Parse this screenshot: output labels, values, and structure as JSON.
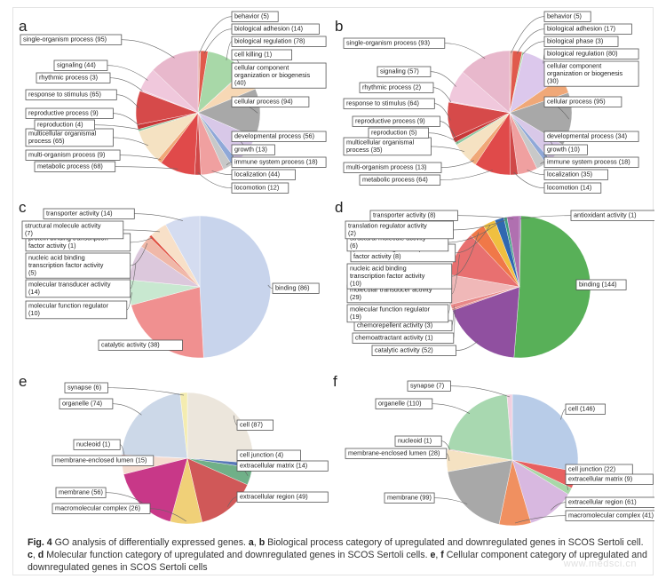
{
  "caption": {
    "fig_label": "Fig. 4",
    "text_parts": [
      {
        "t": " GO analysis of differentially expressed genes. ",
        "b": false
      },
      {
        "t": "a",
        "b": true
      },
      {
        "t": ", ",
        "b": false
      },
      {
        "t": "b",
        "b": true
      },
      {
        "t": " Biological process category of upregulated and downregulated genes in SCOS Sertoli cell. ",
        "b": false
      },
      {
        "t": "c",
        "b": true
      },
      {
        "t": ", ",
        "b": false
      },
      {
        "t": "d",
        "b": true
      },
      {
        "t": " Molecular function category of upregulated and downregulated genes in SCOS Sertoli cells. ",
        "b": false
      },
      {
        "t": "e",
        "b": true
      },
      {
        "t": ", ",
        "b": false
      },
      {
        "t": "f",
        "b": true
      },
      {
        "t": " Cellular component category of upregulated and downregulated genes in SCOS Sertoli cells",
        "b": false
      }
    ]
  },
  "chart_data": [
    {
      "panel": "a",
      "type": "pie",
      "slices": [
        {
          "label": "behavior (5)",
          "value": 5,
          "color": "#e5a7a0"
        },
        {
          "label": "biological adhesion (14)",
          "value": 14,
          "color": "#e05a4c"
        },
        {
          "label": "biological regulation (78)",
          "value": 78,
          "color": "#a8d8a8"
        },
        {
          "label": "cell killing (1)",
          "value": 1,
          "color": "#6a8fc8"
        },
        {
          "label": "cellular component organization or biogenesis (40)",
          "value": 40,
          "color": "#f7d8b5"
        },
        {
          "label": "cellular process (94)",
          "value": 94,
          "color": "#a8a8a8"
        },
        {
          "label": "developmental process (56)",
          "value": 56,
          "color": "#d8c8e8"
        },
        {
          "label": "growth (13)",
          "value": 13,
          "color": "#8fa8d8"
        },
        {
          "label": "immune system process (18)",
          "value": 18,
          "color": "#c8c8c8"
        },
        {
          "label": "localization (44)",
          "value": 44,
          "color": "#f0a0a0"
        },
        {
          "label": "locomotion (12)",
          "value": 12,
          "color": "#d04848"
        },
        {
          "label": "metabolic process (68)",
          "value": 68,
          "color": "#e04a4a"
        },
        {
          "label": "multi-organism process (9)",
          "value": 9,
          "color": "#f0a878"
        },
        {
          "label": "multicellular organismal process (65)",
          "value": 65,
          "color": "#f5e2c2"
        },
        {
          "label": "reproduction (4)",
          "value": 4,
          "color": "#8cc8a0"
        },
        {
          "label": "reproductive process (9)",
          "value": 9,
          "color": "#c83838"
        },
        {
          "label": "response to stimulus (65)",
          "value": 65,
          "color": "#d64a4a"
        },
        {
          "label": "rhythmic process (3)",
          "value": 3,
          "color": "#f0c8d8"
        },
        {
          "label": "signaling (44)",
          "value": 44,
          "color": "#f0c8dc"
        },
        {
          "label": "single-organism process (95)",
          "value": 95,
          "color": "#e8b8cc"
        }
      ]
    },
    {
      "panel": "b",
      "type": "pie",
      "slices": [
        {
          "label": "behavior (5)",
          "value": 5,
          "color": "#e5a7a0"
        },
        {
          "label": "biological adhesion (17)",
          "value": 17,
          "color": "#e05a4c"
        },
        {
          "label": "biological phase (3)",
          "value": 3,
          "color": "#a8d8a8"
        },
        {
          "label": "biological regulation (80)",
          "value": 80,
          "color": "#dcc8ec"
        },
        {
          "label": "cellular component organization or biogenesis (30)",
          "value": 30,
          "color": "#f0a878"
        },
        {
          "label": "cellular process (95)",
          "value": 95,
          "color": "#a8a8a8"
        },
        {
          "label": "developmental process (34)",
          "value": 34,
          "color": "#d8c8e8"
        },
        {
          "label": "growth (10)",
          "value": 10,
          "color": "#8fa8d8"
        },
        {
          "label": "immune system process (18)",
          "value": 18,
          "color": "#c8c8c8"
        },
        {
          "label": "localization (35)",
          "value": 35,
          "color": "#f0a0a0"
        },
        {
          "label": "locomotion (14)",
          "value": 14,
          "color": "#d04848"
        },
        {
          "label": "metabolic process (64)",
          "value": 64,
          "color": "#e04a4a"
        },
        {
          "label": "multi-organism process (13)",
          "value": 13,
          "color": "#f0a878"
        },
        {
          "label": "multicellular organismal process (35)",
          "value": 35,
          "color": "#f5e2c2"
        },
        {
          "label": "reproduction (5)",
          "value": 5,
          "color": "#8cc8a0"
        },
        {
          "label": "reproductive process (9)",
          "value": 9,
          "color": "#c83838"
        },
        {
          "label": "response to stimulus (64)",
          "value": 64,
          "color": "#d64a4a"
        },
        {
          "label": "rhythmic process (2)",
          "value": 2,
          "color": "#f0c8d8"
        },
        {
          "label": "signaling (57)",
          "value": 57,
          "color": "#f0c8dc"
        },
        {
          "label": "single-organism process (93)",
          "value": 93,
          "color": "#e8b8cc"
        }
      ]
    },
    {
      "panel": "c",
      "type": "pie",
      "slices": [
        {
          "label": "binding (86)",
          "value": 86,
          "color": "#c8d4ec"
        },
        {
          "label": "catalytic activity (38)",
          "value": 38,
          "color": "#f09090"
        },
        {
          "label": "molecular function regulator (10)",
          "value": 10,
          "color": "#c8e8d0"
        },
        {
          "label": "molecular transducer activity (14)",
          "value": 14,
          "color": "#dcc8dc"
        },
        {
          "label": "nucleic acid binding transcription factor activity (5)",
          "value": 5,
          "color": "#f0b8a8"
        },
        {
          "label": "protein binding transcription factor activity (1)",
          "value": 1,
          "color": "#e05040"
        },
        {
          "label": "structural molecule activity (7)",
          "value": 7,
          "color": "#f8e0c8"
        },
        {
          "label": "transporter activity (14)",
          "value": 14,
          "color": "#d4dcf0"
        }
      ]
    },
    {
      "panel": "d",
      "type": "pie",
      "slices": [
        {
          "label": "antioxidant activity (1)",
          "value": 1,
          "color": "#8850a0"
        },
        {
          "label": "binding (144)",
          "value": 144,
          "color": "#58b058"
        },
        {
          "label": "catalytic activity (52)",
          "value": 52,
          "color": "#9050a0"
        },
        {
          "label": "chemoattractant activity (1)",
          "value": 1,
          "color": "#e08080"
        },
        {
          "label": "chemorepellent activity (3)",
          "value": 3,
          "color": "#e88888"
        },
        {
          "label": "molecular function regulator (19)",
          "value": 19,
          "color": "#f0b8b8"
        },
        {
          "label": "molecular transducer activity (29)",
          "value": 29,
          "color": "#e87070"
        },
        {
          "label": "nucleic acid binding transcription factor activity (10)",
          "value": 10,
          "color": "#f07848"
        },
        {
          "label": "protein binding transcription factor activity (8)",
          "value": 8,
          "color": "#f0c040"
        },
        {
          "label": "structural molecule activity (6)",
          "value": 6,
          "color": "#3068b0"
        },
        {
          "label": "translation regulator activity (2)",
          "value": 2,
          "color": "#40a080"
        },
        {
          "label": "transporter activity (8)",
          "value": 8,
          "color": "#b070b0"
        }
      ]
    },
    {
      "panel": "e",
      "type": "pie",
      "slices": [
        {
          "label": "cell (87)",
          "value": 87,
          "color": "#ece6dc"
        },
        {
          "label": "cell junction (4)",
          "value": 4,
          "color": "#5878b8"
        },
        {
          "label": "extracellular matrix (14)",
          "value": 14,
          "color": "#70b088"
        },
        {
          "label": "extracellular region (49)",
          "value": 49,
          "color": "#d05858"
        },
        {
          "label": "macromolecular complex (26)",
          "value": 26,
          "color": "#f0d078"
        },
        {
          "label": "membrane (56)",
          "value": 56,
          "color": "#c83888"
        },
        {
          "label": "membrane-enclosed lumen (15)",
          "value": 15,
          "color": "#f5dcd0"
        },
        {
          "label": "nucleoid (1)",
          "value": 1,
          "color": "#e08888"
        },
        {
          "label": "organelle (74)",
          "value": 74,
          "color": "#ccd8e8"
        },
        {
          "label": "synapse (6)",
          "value": 6,
          "color": "#f4ecb0"
        }
      ]
    },
    {
      "panel": "f",
      "type": "pie",
      "slices": [
        {
          "label": "cell (146)",
          "value": 146,
          "color": "#b8cce8"
        },
        {
          "label": "cell junction (22)",
          "value": 22,
          "color": "#e86060"
        },
        {
          "label": "extracellular matrix (9)",
          "value": 9,
          "color": "#a8d8a8"
        },
        {
          "label": "extracellular region (61)",
          "value": 61,
          "color": "#d8b8e0"
        },
        {
          "label": "macromolecular complex (41)",
          "value": 41,
          "color": "#f09060"
        },
        {
          "label": "membrane (99)",
          "value": 99,
          "color": "#a8a8a8"
        },
        {
          "label": "membrane-enclosed lumen (28)",
          "value": 28,
          "color": "#f5e2c2"
        },
        {
          "label": "nucleoid (1)",
          "value": 1,
          "color": "#e08888"
        },
        {
          "label": "organelle (110)",
          "value": 110,
          "color": "#a8d8b0"
        },
        {
          "label": "synapse (7)",
          "value": 7,
          "color": "#f0d0e0"
        }
      ]
    }
  ]
}
